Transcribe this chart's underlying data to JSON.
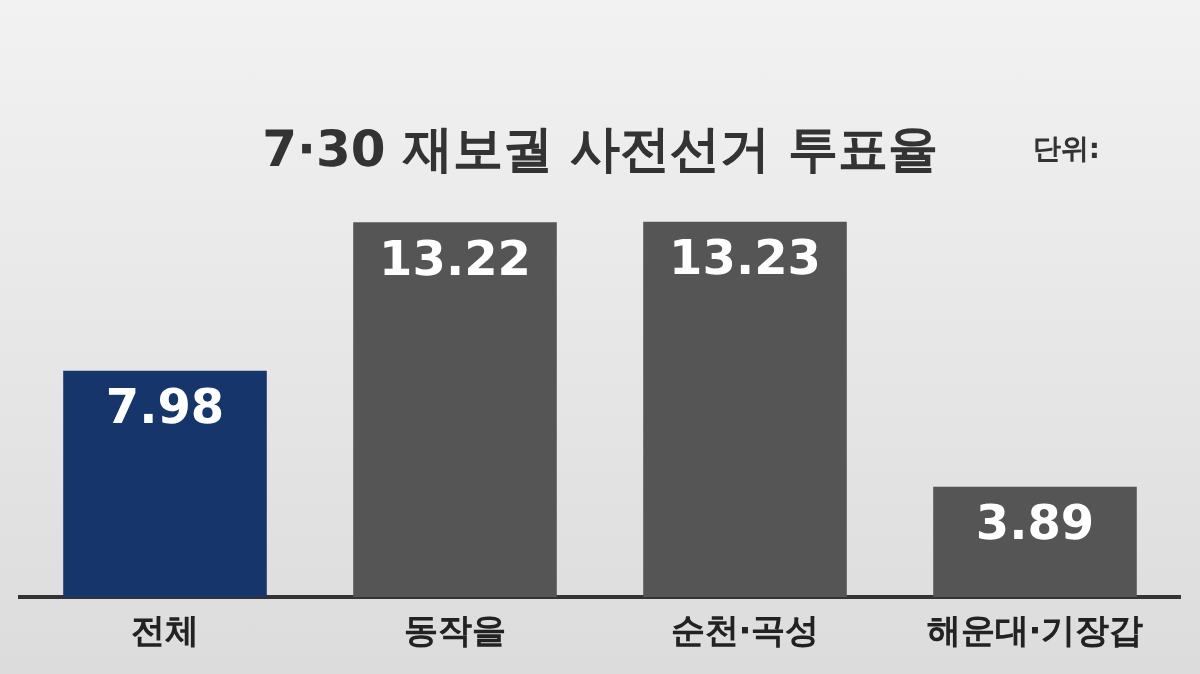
{
  "chart_data": {
    "type": "bar",
    "title": "7·30 재보궐 사전선거 투표율",
    "annotations": [
      "단위:"
    ],
    "categories": [
      "전체",
      "동작을",
      "순천·곡성",
      "해운대·기장갑"
    ],
    "values": [
      7.98,
      13.22,
      13.23,
      3.89
    ],
    "colors": [
      "#16356b",
      "#555555",
      "#555555",
      "#555555"
    ],
    "data_labels": true,
    "grid": false,
    "legend": false
  }
}
